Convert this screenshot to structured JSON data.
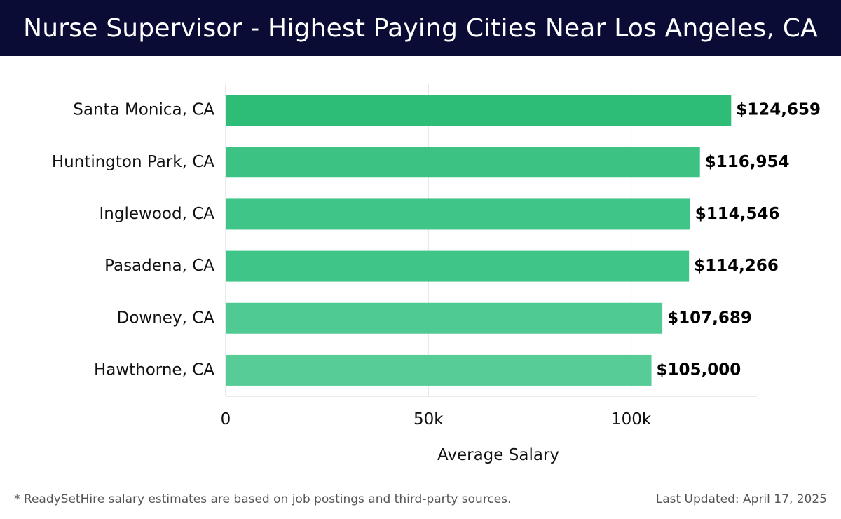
{
  "header": {
    "title": "Nurse Supervisor - Highest Paying Cities Near Los Angeles, CA"
  },
  "chart_data": {
    "type": "bar",
    "orientation": "horizontal",
    "categories": [
      "Santa Monica, CA",
      "Huntington Park, CA",
      "Inglewood, CA",
      "Pasadena, CA",
      "Downey, CA",
      "Hawthorne, CA"
    ],
    "values": [
      124659,
      116954,
      114546,
      114266,
      107689,
      105000
    ],
    "value_labels": [
      "$124,659",
      "$116,954",
      "$114,546",
      "$114,266",
      "$107,689",
      "$105,000"
    ],
    "bar_colors": [
      "#2dbd77",
      "#3cc384",
      "#3fc587",
      "#40c588",
      "#50ca93",
      "#57cc97"
    ],
    "xlabel": "Average Salary",
    "xlim": [
      0,
      131000
    ],
    "xticks": [
      0,
      50000,
      100000
    ],
    "xtick_labels": [
      "0",
      "50k",
      "100k"
    ],
    "grid": "vertical"
  },
  "footer": {
    "note": "* ReadySetHire salary estimates are based on job postings and third-party sources.",
    "updated": "Last Updated: April 17, 2025"
  }
}
